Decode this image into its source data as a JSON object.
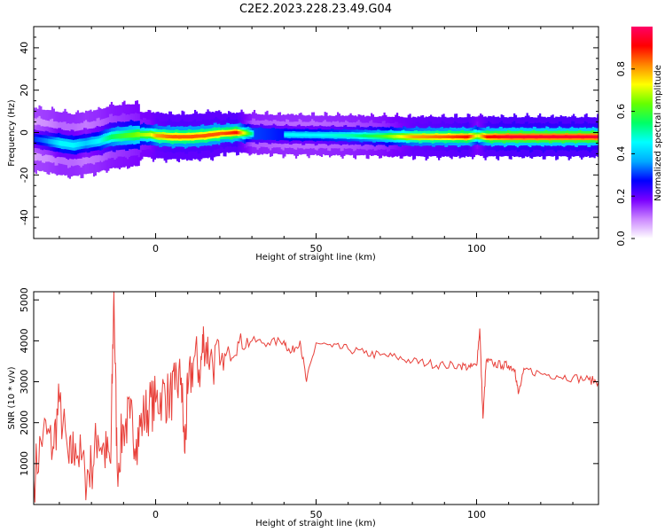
{
  "figure": {
    "title": "C2E2.2023.228.23.49.G04"
  },
  "chart_data": [
    {
      "type": "heatmap",
      "xlabel": "Height of straight line (km)",
      "ylabel": "Frequency (Hz)",
      "xlim": [
        -38,
        138
      ],
      "ylim": [
        -50,
        50
      ],
      "xticks": [
        0,
        50,
        100
      ],
      "yticks": [
        -40,
        -20,
        0,
        20,
        40
      ],
      "colorbar": {
        "label": "Normalized spectral amplitude",
        "range": [
          0,
          1
        ],
        "ticks": [
          0.0,
          0.2,
          0.4,
          0.6,
          0.8
        ],
        "colormap": [
          "#ffffff",
          "#cc88ff",
          "#7a00ff",
          "#0000ff",
          "#00aaff",
          "#00ffff",
          "#00ff66",
          "#66ff00",
          "#ffff00",
          "#ff8800",
          "#ff0000",
          "#ff0066"
        ]
      },
      "ridge": {
        "x": [
          -38,
          -34,
          -30,
          -26,
          -22,
          -18,
          -14,
          -10,
          -6,
          -2,
          0,
          5,
          10,
          15,
          20,
          25,
          30,
          40,
          50,
          60,
          70,
          80,
          90,
          97,
          100,
          103,
          110,
          120,
          130,
          138
        ],
        "y": [
          -3,
          -4,
          -5,
          -6,
          -5,
          -4,
          -2,
          -1.5,
          -1,
          -1,
          -1.5,
          -2,
          -2,
          -1.5,
          -0.5,
          0,
          -0.5,
          -1,
          -1.2,
          -1.4,
          -1.7,
          -2,
          -2,
          -2,
          -1.5,
          -2,
          -2,
          -2,
          -2,
          -2
        ],
        "amplitude": [
          0.3,
          0.35,
          0.45,
          0.45,
          0.4,
          0.45,
          0.55,
          0.6,
          0.65,
          0.7,
          0.8,
          0.85,
          0.85,
          0.85,
          0.85,
          0.9,
          0.5,
          0.45,
          0.45,
          0.5,
          0.6,
          0.8,
          0.85,
          0.9,
          0.7,
          0.9,
          0.95,
          0.95,
          0.95,
          0.95
        ]
      }
    },
    {
      "type": "line",
      "xlabel": "Height of straight line (km)",
      "ylabel": "SNR (10 * v/v)",
      "xlim": [
        -38,
        138
      ],
      "ylim": [
        0,
        5200
      ],
      "xticks": [
        0,
        50,
        100
      ],
      "yticks": [
        1000,
        2000,
        3000,
        4000,
        5000
      ],
      "color": "#e8403a",
      "x": [
        -38,
        -35,
        -32,
        -30,
        -27,
        -25,
        -22,
        -20,
        -18,
        -16,
        -14,
        -13,
        -12,
        -10,
        -8,
        -6,
        -4,
        -2,
        0,
        2,
        4,
        6,
        8,
        9,
        10,
        12,
        14,
        15,
        17,
        20,
        23,
        26,
        30,
        35,
        40,
        42,
        45,
        47,
        50,
        55,
        60,
        65,
        70,
        75,
        80,
        85,
        90,
        95,
        98,
        100,
        101,
        102,
        103,
        105,
        108,
        110,
        112,
        113,
        115,
        120,
        125,
        130,
        135,
        138
      ],
      "y": [
        600,
        1800,
        1400,
        2500,
        1000,
        1500,
        700,
        900,
        1700,
        1300,
        1000,
        5200,
        900,
        1900,
        2100,
        1600,
        2100,
        2400,
        2500,
        2700,
        2600,
        2800,
        3100,
        1300,
        2700,
        3600,
        3300,
        4100,
        3600,
        3400,
        3700,
        3950,
        4000,
        3950,
        4000,
        3700,
        4000,
        3000,
        3950,
        3850,
        3800,
        3700,
        3650,
        3600,
        3500,
        3450,
        3400,
        3400,
        3350,
        3400,
        4300,
        2100,
        3500,
        3450,
        3400,
        3400,
        3300,
        2700,
        3300,
        3200,
        3150,
        3100,
        3050,
        3000
      ]
    }
  ]
}
